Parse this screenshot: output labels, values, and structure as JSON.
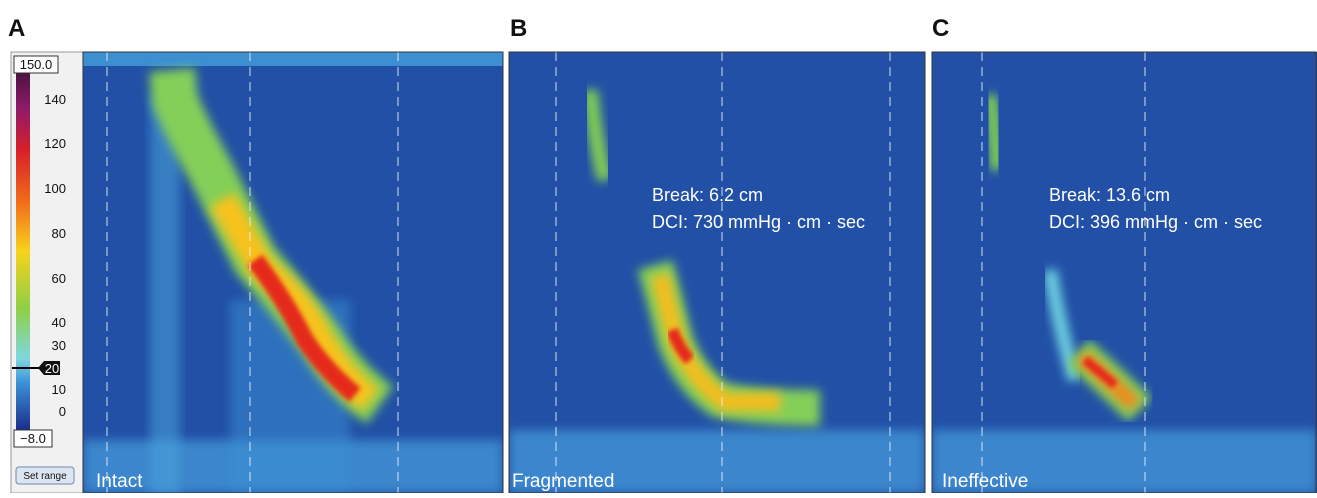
{
  "panels": [
    {
      "letter": "A",
      "caption": "Intact"
    },
    {
      "letter": "B",
      "caption": "Fragmented",
      "annotations": [
        "Break: 6.2 cm",
        "DCI: 730 mmHg · cm · sec"
      ]
    },
    {
      "letter": "C",
      "caption": "Ineffective",
      "annotations": [
        "Break: 13.6 cm",
        "DCI: 396 mmHg · cm · sec"
      ]
    }
  ],
  "colorbar": {
    "max_label": "150.0",
    "min_label": "−8.0",
    "ticks": [
      "140",
      "120",
      "100",
      "80",
      "60",
      "40",
      "30",
      "10",
      "0"
    ],
    "threshold_label": "20",
    "button": "Set range"
  }
}
